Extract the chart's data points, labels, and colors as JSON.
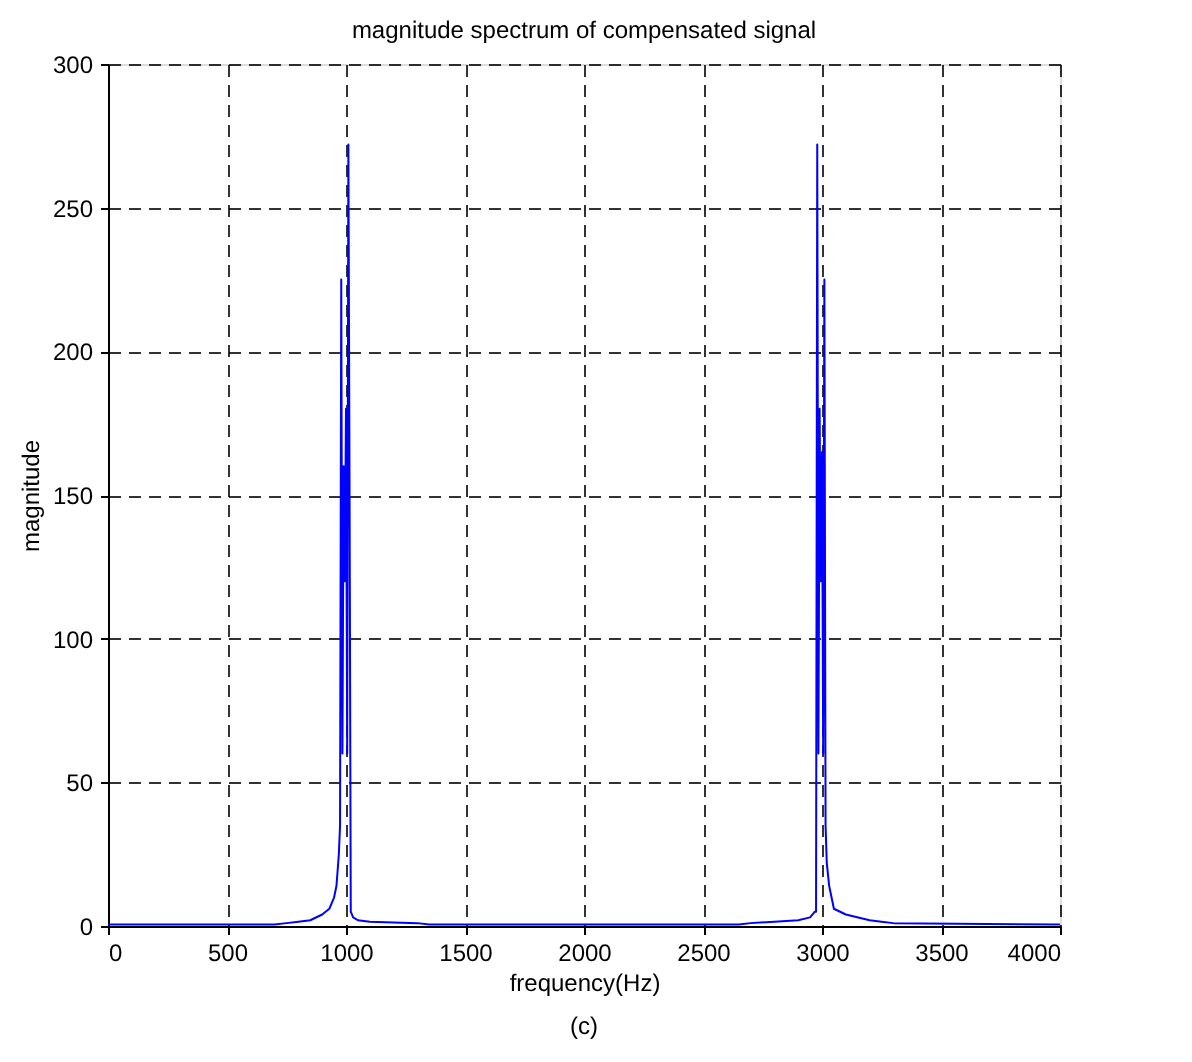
{
  "chart_data": {
    "type": "line",
    "title": "magnitude spectrum of compensated signal",
    "xlabel": "frequency(Hz)",
    "ylabel": "magnitude",
    "annotations": [
      "(c)"
    ],
    "x": [
      0,
      500,
      700,
      750,
      800,
      850,
      900,
      930,
      950,
      960,
      970,
      975,
      980,
      985,
      990,
      995,
      1000,
      1005,
      1010,
      1015,
      1020,
      1030,
      1050,
      1100,
      1300,
      1350,
      2000,
      2650,
      2700,
      2800,
      2900,
      2950,
      2970,
      2975,
      2980,
      2985,
      2990,
      2995,
      3000,
      3005,
      3010,
      3015,
      3020,
      3030,
      3040,
      3050,
      3100,
      3200,
      3250,
      3300,
      4000
    ],
    "series": [
      {
        "color": "#0000ff",
        "values": [
          0.5,
          0.5,
          0.5,
          1,
          1.5,
          2,
          4,
          6,
          10,
          14,
          25,
          35,
          225,
          60,
          160,
          120,
          180,
          60,
          272,
          150,
          5,
          3,
          2,
          1.5,
          1,
          0.5,
          0.5,
          0.5,
          1,
          1.5,
          2,
          3,
          5,
          5,
          272,
          60,
          180,
          120,
          165,
          60,
          225,
          35,
          22,
          14,
          10,
          6,
          4,
          2,
          1.5,
          1,
          0.5
        ]
      }
    ],
    "xlim": [
      0,
      4000
    ],
    "ylim": [
      0,
      300
    ],
    "xticks": [
      0,
      500,
      1000,
      1500,
      2000,
      2500,
      3000,
      3500,
      4000
    ],
    "yticks": [
      0,
      50,
      100,
      150,
      200,
      250,
      300
    ],
    "grid": true,
    "line_style": "solid",
    "marker": "none"
  }
}
